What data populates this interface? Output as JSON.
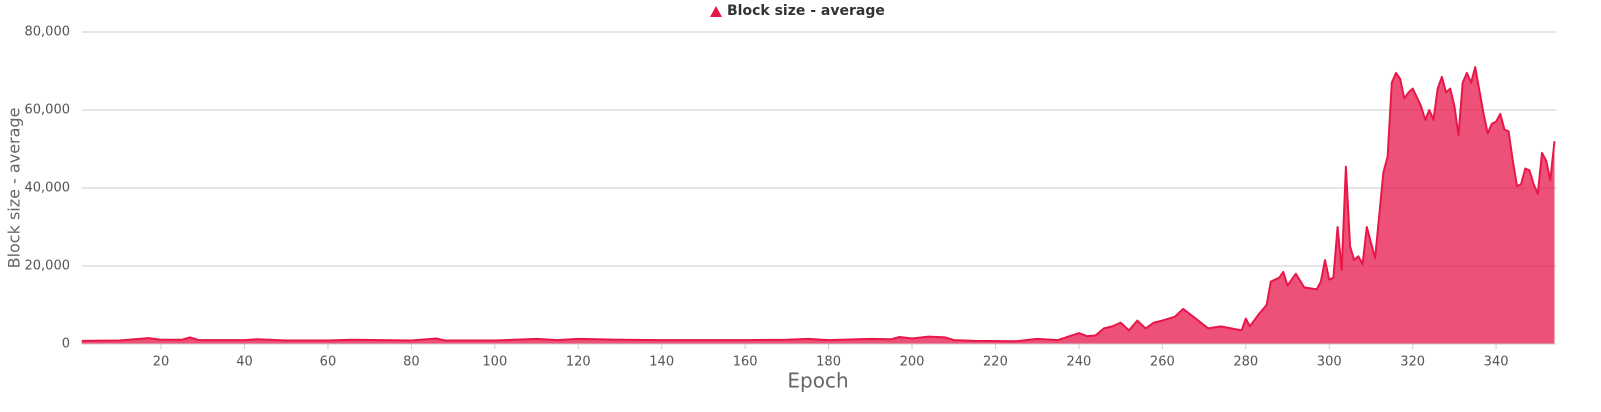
{
  "chart_data": {
    "type": "area",
    "legend_label": "Block size - average",
    "x_label": "Epoch",
    "y_label": "Block size - average",
    "color": "#e8174a",
    "grid": true,
    "xlim": [
      1,
      354
    ],
    "xticks": [
      20,
      40,
      60,
      80,
      100,
      120,
      140,
      160,
      180,
      200,
      220,
      240,
      260,
      280,
      300,
      320,
      340
    ],
    "ylim": [
      0,
      80000
    ],
    "yticks": [
      0,
      {
        "value": 20000,
        "label": "20,000"
      },
      {
        "value": 40000,
        "label": "40,000"
      },
      {
        "value": 60000,
        "label": "60,000"
      },
      {
        "value": 80000,
        "label": "80,000"
      }
    ],
    "x": [
      1,
      10,
      17,
      20,
      25,
      27,
      29,
      40,
      43,
      50,
      60,
      66,
      80,
      86,
      88,
      100,
      110,
      115,
      120,
      130,
      140,
      150,
      160,
      170,
      175,
      180,
      190,
      195,
      197,
      200,
      204,
      208,
      210,
      215,
      225,
      230,
      235,
      240,
      242,
      244,
      246,
      248,
      250,
      252,
      254,
      256,
      258,
      260,
      263,
      265,
      268,
      271,
      274,
      279,
      280,
      281,
      283,
      285,
      286,
      288,
      289,
      290,
      292,
      294,
      297,
      298,
      299,
      300,
      301,
      302,
      303,
      304,
      305,
      306,
      307,
      308,
      309,
      311,
      313,
      314,
      315,
      316,
      317,
      318,
      319,
      320,
      322,
      323,
      324,
      325,
      326,
      327,
      328,
      329,
      330,
      331,
      332,
      333,
      334,
      335,
      336,
      337,
      338,
      339,
      340,
      341,
      342,
      343,
      344,
      345,
      346,
      347,
      348,
      349,
      350,
      351,
      352,
      353,
      354
    ],
    "values": [
      800,
      900,
      1500,
      1100,
      1100,
      1700,
      1000,
      1000,
      1200,
      900,
      900,
      1100,
      900,
      1400,
      900,
      900,
      1300,
      1000,
      1300,
      1100,
      1000,
      1000,
      1000,
      1100,
      1300,
      1000,
      1300,
      1200,
      1800,
      1400,
      1900,
      1700,
      1000,
      800,
      700,
      1300,
      1000,
      2800,
      2000,
      2200,
      4000,
      4500,
      5500,
      3500,
      6000,
      4000,
      5500,
      6000,
      7000,
      9000,
      6500,
      4000,
      4500,
      3500,
      6500,
      4500,
      7500,
      10000,
      16000,
      17000,
      18500,
      15000,
      18000,
      14500,
      14000,
      16000,
      21500,
      16500,
      17000,
      30000,
      19000,
      45500,
      25000,
      21500,
      22500,
      20500,
      30000,
      22000,
      44000,
      48000,
      67000,
      69500,
      68000,
      63000,
      64500,
      65500,
      61000,
      57500,
      60000,
      57500,
      65500,
      68500,
      64500,
      65500,
      61000,
      53500,
      67000,
      69500,
      67000,
      71000,
      65000,
      59000,
      54000,
      56500,
      57000,
      59000,
      55000,
      54500,
      47000,
      40500,
      41000,
      45000,
      44500,
      41000,
      38500,
      49000,
      47000,
      42000,
      52000
    ]
  }
}
